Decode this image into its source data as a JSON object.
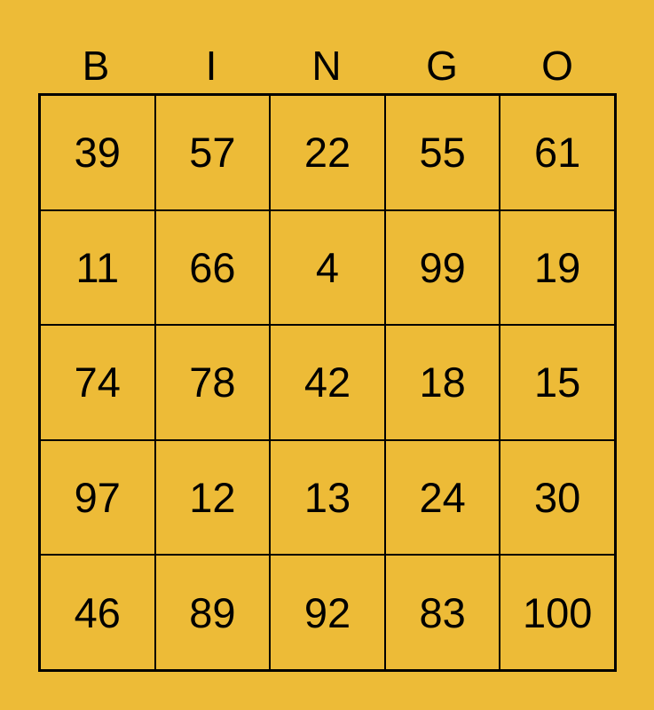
{
  "header": [
    "B",
    "I",
    "N",
    "G",
    "O"
  ],
  "rows": [
    [
      "39",
      "57",
      "22",
      "55",
      "61"
    ],
    [
      "11",
      "66",
      "4",
      "99",
      "19"
    ],
    [
      "74",
      "78",
      "42",
      "18",
      "15"
    ],
    [
      "97",
      "12",
      "13",
      "24",
      "30"
    ],
    [
      "46",
      "89",
      "92",
      "83",
      "100"
    ]
  ],
  "colors": {
    "background": "#EDBB37",
    "lines": "#000000"
  }
}
